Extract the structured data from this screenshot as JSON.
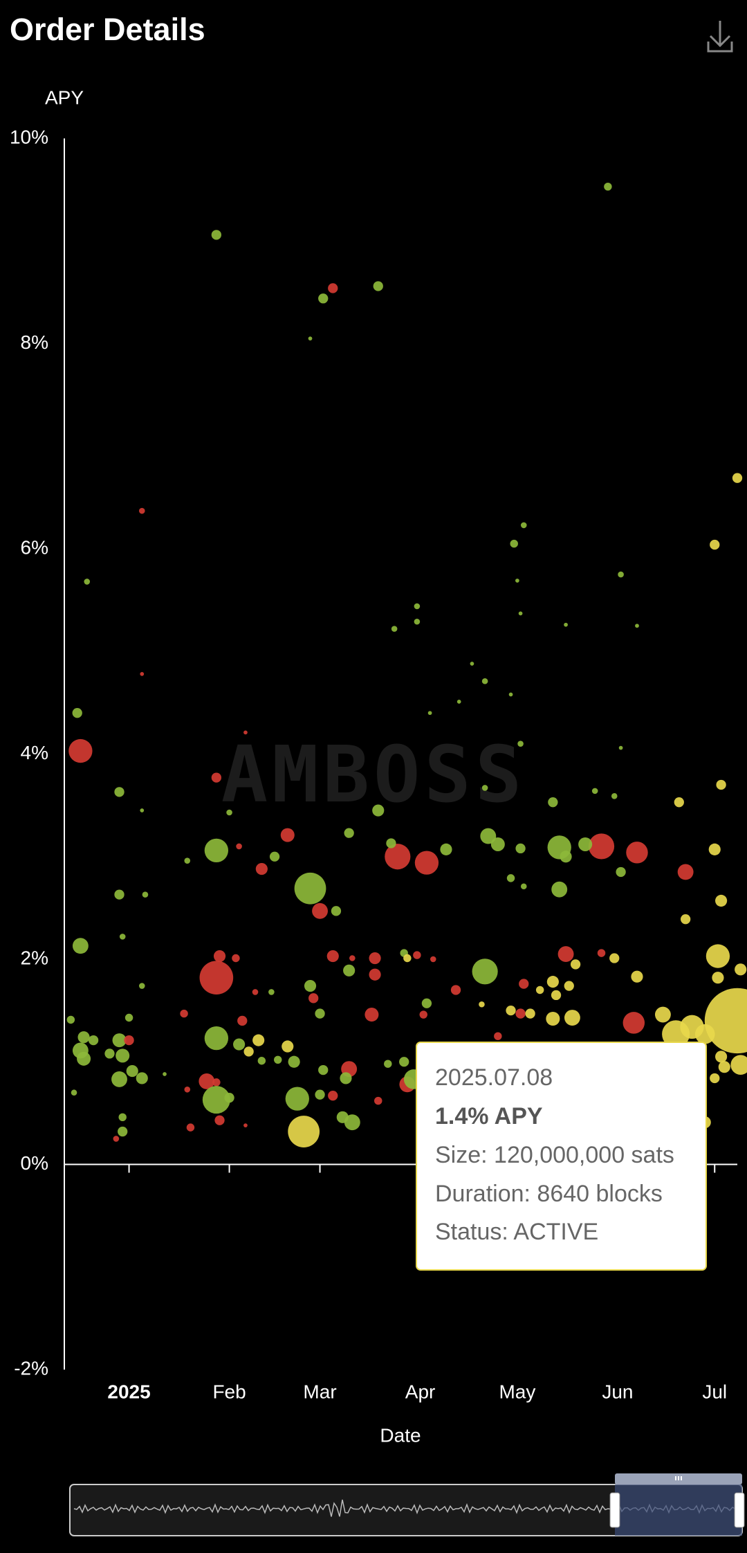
{
  "header": {
    "title": "Order Details"
  },
  "chart_data": {
    "type": "scatter",
    "y_label": "APY",
    "x_label": "Date",
    "watermark": "AMBOSS",
    "xlim": [
      -20,
      188
    ],
    "ylim": [
      -2,
      10
    ],
    "xticks": [
      {
        "value": 0,
        "label": "2025"
      },
      {
        "value": 31,
        "label": "Feb"
      },
      {
        "value": 59,
        "label": "Mar"
      },
      {
        "value": 90,
        "label": "Apr"
      },
      {
        "value": 120,
        "label": "May"
      },
      {
        "value": 151,
        "label": "Jun"
      },
      {
        "value": 181,
        "label": "Jul"
      }
    ],
    "yticks": [
      {
        "value": -2,
        "label": "-2%"
      },
      {
        "value": 0,
        "label": "0%"
      },
      {
        "value": 2,
        "label": "2%"
      },
      {
        "value": 4,
        "label": "4%"
      },
      {
        "value": 6,
        "label": "6%"
      },
      {
        "value": 8,
        "label": "8%"
      },
      {
        "value": 10,
        "label": "10%"
      }
    ],
    "x": [
      27,
      148,
      63,
      60,
      77,
      56,
      188,
      4,
      -13,
      181,
      122,
      119,
      152,
      120,
      89,
      121,
      82,
      135,
      157,
      89,
      4,
      106,
      110,
      -16,
      -15,
      102,
      93,
      118,
      36,
      121,
      152,
      183,
      -3,
      27,
      110,
      131,
      170,
      144,
      150,
      31,
      4,
      77,
      49,
      27,
      68,
      83,
      92,
      81,
      98,
      111,
      114,
      133,
      146,
      157,
      141,
      135,
      121,
      41,
      45,
      56,
      34,
      18,
      152,
      172,
      181,
      -3,
      5,
      133,
      118,
      122,
      59,
      64,
      172,
      183,
      -15,
      -2,
      27,
      110,
      28,
      33,
      63,
      69,
      76,
      85,
      86,
      89,
      94,
      135,
      138,
      146,
      150,
      157,
      182,
      189,
      182,
      68,
      76,
      92,
      101,
      122,
      131,
      132,
      136,
      127,
      56,
      57,
      17,
      39,
      44,
      4,
      0,
      -18,
      -14,
      -11,
      -15,
      -14,
      -3,
      -2,
      0,
      -6,
      35,
      27,
      34,
      37,
      40,
      59,
      75,
      91,
      109,
      118,
      121,
      124,
      131,
      137,
      165,
      156,
      169,
      174,
      188,
      178,
      189,
      184,
      183,
      49,
      51,
      46,
      41,
      114,
      80,
      85,
      68,
      60,
      67,
      -3,
      4,
      1,
      24,
      27,
      18,
      27,
      31,
      11,
      86,
      88,
      52,
      63,
      59,
      77,
      69,
      66,
      54,
      28,
      -2,
      -2,
      -4,
      19,
      36,
      178,
      -17,
      181
    ],
    "values": [
      9.06,
      9.53,
      8.54,
      8.44,
      8.56,
      8.05,
      6.69,
      6.37,
      5.68,
      6.04,
      6.23,
      6.05,
      5.75,
      5.69,
      5.44,
      5.37,
      5.22,
      5.26,
      5.25,
      5.29,
      4.78,
      4.88,
      4.71,
      4.4,
      4.03,
      4.51,
      4.4,
      4.58,
      4.21,
      4.1,
      4.06,
      3.7,
      3.63,
      3.77,
      3.67,
      3.53,
      3.53,
      3.64,
      3.59,
      3.43,
      3.45,
      3.45,
      3.21,
      3.06,
      3.23,
      3.0,
      2.94,
      3.13,
      3.07,
      3.2,
      3.12,
      3.09,
      3.1,
      3.04,
      3.12,
      3.0,
      3.08,
      2.88,
      3.0,
      2.69,
      3.1,
      2.96,
      2.85,
      2.85,
      3.07,
      2.63,
      2.63,
      2.68,
      2.79,
      2.71,
      2.47,
      2.47,
      2.39,
      2.57,
      2.13,
      2.22,
      1.82,
      1.88,
      2.03,
      2.01,
      2.03,
      2.01,
      2.01,
      2.06,
      2.01,
      2.04,
      2.0,
      2.05,
      1.95,
      2.06,
      2.01,
      1.83,
      2.03,
      1.9,
      1.82,
      1.89,
      1.85,
      1.57,
      1.7,
      1.76,
      1.78,
      1.65,
      1.74,
      1.7,
      1.74,
      1.62,
      1.47,
      1.68,
      1.68,
      1.74,
      1.43,
      1.41,
      1.24,
      1.21,
      1.11,
      1.03,
      1.21,
      1.06,
      1.21,
      1.08,
      1.4,
      1.23,
      1.17,
      1.1,
      1.21,
      1.47,
      1.46,
      1.46,
      1.56,
      1.5,
      1.47,
      1.47,
      1.42,
      1.43,
      1.46,
      1.38,
      1.27,
      1.34,
      1.4,
      1.27,
      0.97,
      0.95,
      1.05,
      1.15,
      1.0,
      1.02,
      1.01,
      1.25,
      0.98,
      1.0,
      0.93,
      0.92,
      0.84,
      0.83,
      0.84,
      0.91,
      0.81,
      0.8,
      0.73,
      0.63,
      0.65,
      0.88,
      0.78,
      0.83,
      0.64,
      0.67,
      0.68,
      0.62,
      0.41,
      0.46,
      0.32,
      0.43,
      0.46,
      0.32,
      0.25,
      0.36,
      0.38,
      0.41,
      0.7,
      0.84
    ],
    "sizes": [
      2750000,
      1760000,
      2750000,
      2750000,
      2750000,
      440000,
      2750000,
      990000,
      990000,
      2750000,
      990000,
      1760000,
      990000,
      440000,
      990000,
      440000,
      990000,
      440000,
      440000,
      990000,
      440000,
      440000,
      990000,
      2750000,
      15840000,
      440000,
      440000,
      440000,
      440000,
      990000,
      440000,
      2750000,
      2750000,
      2750000,
      990000,
      2750000,
      2750000,
      990000,
      990000,
      990000,
      440000,
      3960000,
      5390000,
      15840000,
      2750000,
      18590000,
      15840000,
      2750000,
      3960000,
      7040000,
      5390000,
      15840000,
      18590000,
      13310000,
      5390000,
      3960000,
      2750000,
      3960000,
      2750000,
      28160000,
      990000,
      990000,
      2750000,
      7040000,
      3960000,
      2750000,
      990000,
      7040000,
      1760000,
      990000,
      7040000,
      2750000,
      2750000,
      3960000,
      7040000,
      990000,
      31790000,
      18590000,
      3960000,
      1760000,
      3960000,
      990000,
      3960000,
      1760000,
      1760000,
      1760000,
      990000,
      7040000,
      2750000,
      1760000,
      2750000,
      3960000,
      15840000,
      3960000,
      3960000,
      3960000,
      3960000,
      2750000,
      2750000,
      2750000,
      3960000,
      2750000,
      2750000,
      1760000,
      3960000,
      2750000,
      1760000,
      990000,
      990000,
      990000,
      1760000,
      1760000,
      3960000,
      2750000,
      7040000,
      5390000,
      5390000,
      5390000,
      2750000,
      2750000,
      2750000,
      15840000,
      3960000,
      2750000,
      3960000,
      2750000,
      5390000,
      1760000,
      990000,
      2750000,
      2750000,
      2750000,
      5390000,
      7040000,
      7040000,
      13310000,
      21560000,
      15840000,
      120000000,
      11000000,
      11000000,
      3960000,
      3960000,
      3960000,
      3960000,
      1760000,
      1760000,
      1760000,
      1760000,
      2750000,
      7040000,
      2750000,
      3960000,
      7040000,
      3960000,
      3960000,
      7040000,
      1760000,
      990000,
      21560000,
      2750000,
      440000,
      7040000,
      11000000,
      15840000,
      2750000,
      2750000,
      1760000,
      7040000,
      3960000,
      28160000,
      2750000,
      1760000,
      2750000,
      990000,
      1760000,
      440000,
      3960000,
      990000,
      2750000
    ],
    "colors": [
      "#8db83a",
      "#8db83a",
      "#d43b32",
      "#8db83a",
      "#8db83a",
      "#8db83a",
      "#e8d84c",
      "#d43b32",
      "#8db83a",
      "#e8d84c",
      "#8db83a",
      "#8db83a",
      "#8db83a",
      "#8db83a",
      "#8db83a",
      "#8db83a",
      "#8db83a",
      "#8db83a",
      "#8db83a",
      "#8db83a",
      "#d43b32",
      "#8db83a",
      "#8db83a",
      "#8db83a",
      "#d43b32",
      "#8db83a",
      "#8db83a",
      "#8db83a",
      "#d43b32",
      "#8db83a",
      "#8db83a",
      "#e8d84c",
      "#8db83a",
      "#d43b32",
      "#8db83a",
      "#8db83a",
      "#e8d84c",
      "#8db83a",
      "#8db83a",
      "#8db83a",
      "#8db83a",
      "#8db83a",
      "#d43b32",
      "#8db83a",
      "#8db83a",
      "#d43b32",
      "#d43b32",
      "#8db83a",
      "#8db83a",
      "#8db83a",
      "#8db83a",
      "#8db83a",
      "#d43b32",
      "#d43b32",
      "#8db83a",
      "#8db83a",
      "#8db83a",
      "#d43b32",
      "#8db83a",
      "#8db83a",
      "#d43b32",
      "#8db83a",
      "#8db83a",
      "#d43b32",
      "#e8d84c",
      "#8db83a",
      "#8db83a",
      "#8db83a",
      "#8db83a",
      "#8db83a",
      "#d43b32",
      "#8db83a",
      "#e8d84c",
      "#e8d84c",
      "#8db83a",
      "#8db83a",
      "#d43b32",
      "#8db83a",
      "#d43b32",
      "#d43b32",
      "#d43b32",
      "#d43b32",
      "#d43b32",
      "#8db83a",
      "#e8d84c",
      "#d43b32",
      "#d43b32",
      "#d43b32",
      "#e8d84c",
      "#d43b32",
      "#e8d84c",
      "#e8d84c",
      "#e8d84c",
      "#e8d84c",
      "#e8d84c",
      "#8db83a",
      "#d43b32",
      "#8db83a",
      "#d43b32",
      "#d43b32",
      "#e8d84c",
      "#e8d84c",
      "#e8d84c",
      "#e8d84c",
      "#8db83a",
      "#d43b32",
      "#d43b32",
      "#d43b32",
      "#8db83a",
      "#8db83a",
      "#8db83a",
      "#8db83a",
      "#8db83a",
      "#8db83a",
      "#8db83a",
      "#8db83a",
      "#8db83a",
      "#8db83a",
      "#d43b32",
      "#8db83a",
      "#d43b32",
      "#8db83a",
      "#8db83a",
      "#e8d84c",
      "#e8d84c",
      "#8db83a",
      "#d43b32",
      "#d43b32",
      "#e8d84c",
      "#e8d84c",
      "#d43b32",
      "#e8d84c",
      "#e8d84c",
      "#e8d84c",
      "#e8d84c",
      "#d43b32",
      "#e8d84c",
      "#e8d84c",
      "#e8d84c",
      "#e8d84c",
      "#e8d84c",
      "#e8d84c",
      "#e8d84c",
      "#e8d84c",
      "#8db83a",
      "#8db83a",
      "#8db83a",
      "#d43b32",
      "#8db83a",
      "#8db83a",
      "#d43b32",
      "#8db83a",
      "#8db83a",
      "#8db83a",
      "#8db83a",
      "#8db83a",
      "#d43b32",
      "#d43b32",
      "#d43b32",
      "#8db83a",
      "#8db83a",
      "#8db83a",
      "#d43b32",
      "#8db83a",
      "#8db83a",
      "#d43b32",
      "#8db83a",
      "#d43b32",
      "#8db83a",
      "#8db83a",
      "#e8d84c",
      "#d43b32",
      "#8db83a",
      "#8db83a",
      "#d43b32",
      "#d43b32",
      "#d43b32",
      "#e8d84c",
      "#8db83a",
      "#e8d84c"
    ]
  },
  "tooltip": {
    "date": "2025.07.08",
    "apy": "1.4% APY",
    "size": "Size: 120,000,000 sats",
    "duration": "Duration: 8640 blocks",
    "status": "Status: ACTIVE"
  }
}
